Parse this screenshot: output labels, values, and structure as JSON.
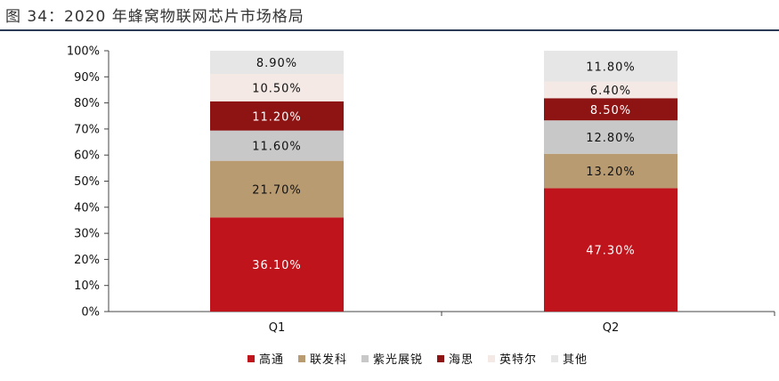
{
  "figure": {
    "title": "图 34：2020 年蜂窝物联网芯片市场格局"
  },
  "chart_data": {
    "type": "bar",
    "stacked": true,
    "categories": [
      "Q1",
      "Q2"
    ],
    "y_ticks": [
      "0%",
      "10%",
      "20%",
      "30%",
      "40%",
      "50%",
      "60%",
      "70%",
      "80%",
      "90%",
      "100%"
    ],
    "ylim": [
      0,
      100
    ],
    "legend_position": "bottom",
    "grid": false,
    "series": [
      {
        "name": "高通",
        "color": "#c0141c",
        "label_color": "#ffffff",
        "values": [
          36.1,
          47.3
        ],
        "labels": [
          "36.10%",
          "47.30%"
        ]
      },
      {
        "name": "联发科",
        "color": "#b99b72",
        "label_color": "#111111",
        "values": [
          21.7,
          13.2
        ],
        "labels": [
          "21.70%",
          "13.20%"
        ]
      },
      {
        "name": "紫光展锐",
        "color": "#c8c8c8",
        "label_color": "#111111",
        "values": [
          11.6,
          12.8
        ],
        "labels": [
          "11.60%",
          "12.80%"
        ]
      },
      {
        "name": "海思",
        "color": "#8e1414",
        "label_color": "#ffffff",
        "values": [
          11.2,
          8.5
        ],
        "labels": [
          "11.20%",
          "8.50%"
        ]
      },
      {
        "name": "英特尔",
        "color": "#f4e9e4",
        "label_color": "#111111",
        "values": [
          10.5,
          6.4
        ],
        "labels": [
          "10.50%",
          "6.40%"
        ]
      },
      {
        "name": "其他",
        "color": "#e6e6e6",
        "label_color": "#111111",
        "values": [
          8.9,
          11.8
        ],
        "labels": [
          "8.90%",
          "11.80%"
        ]
      }
    ]
  }
}
